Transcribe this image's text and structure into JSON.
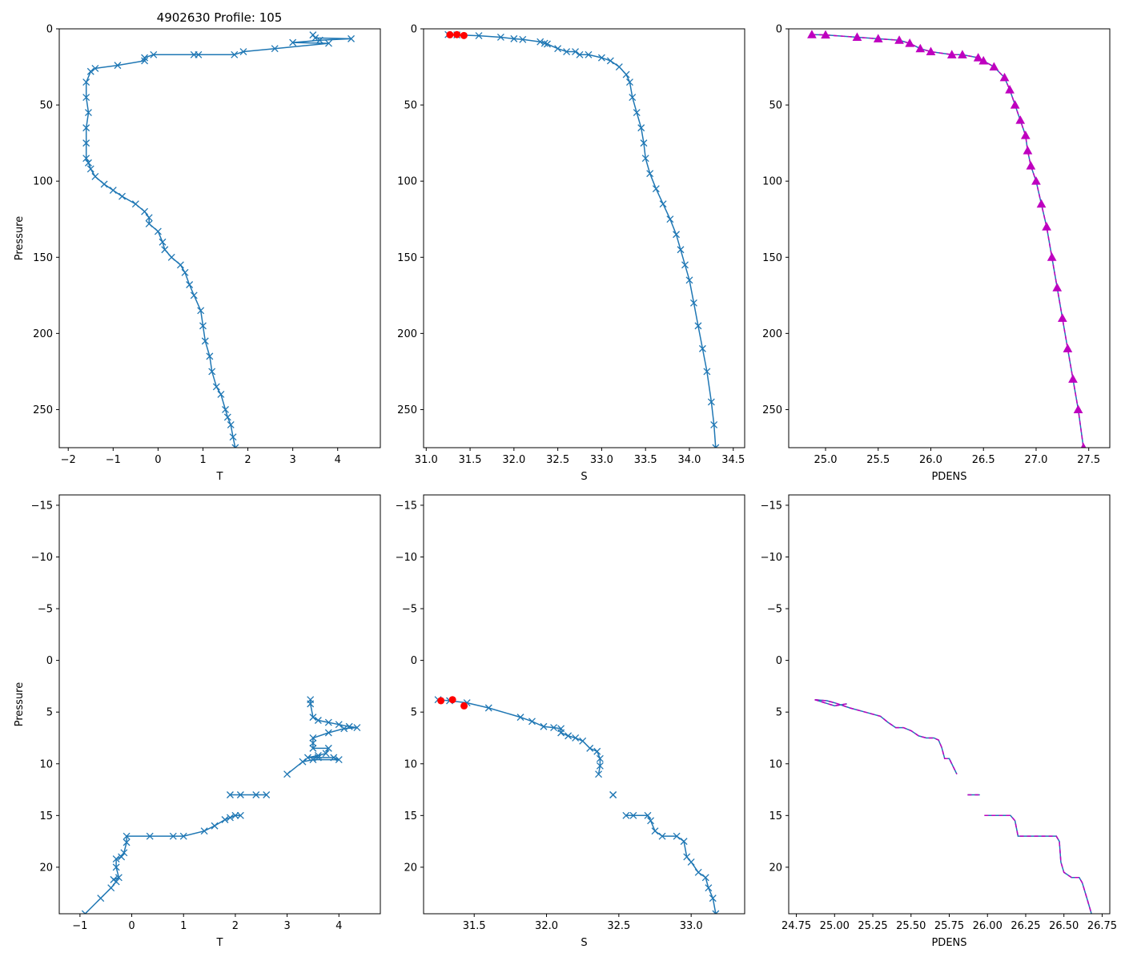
{
  "figure_title": "4902630 Profile: 105",
  "colors": {
    "line": "#1f77b4",
    "flag": "#ff0000",
    "density": "#bf00bf",
    "axis": "#000000"
  },
  "chart_data": [
    {
      "id": "t-full",
      "type": "line",
      "xlabel": "T",
      "ylabel": "Pressure",
      "xlim": [
        -2.2,
        4.95
      ],
      "ylim": [
        275,
        0
      ],
      "xticks": [
        -2,
        -1,
        0,
        1,
        2,
        3,
        4
      ],
      "yticks": [
        0,
        50,
        100,
        150,
        200,
        250
      ],
      "marker": "x",
      "x": [
        3.45,
        3.5,
        4.3,
        3.6,
        3.0,
        3.8,
        2.6,
        1.9,
        1.7,
        0.9,
        0.8,
        -0.1,
        -0.3,
        -0.3,
        -0.9,
        -1.4,
        -1.5,
        -1.6,
        -1.6,
        -1.55,
        -1.6,
        -1.6,
        -1.6,
        -1.55,
        -1.5,
        -1.4,
        -1.2,
        -1.0,
        -0.8,
        -0.5,
        -0.3,
        -0.2,
        -0.2,
        0.0,
        0.1,
        0.15,
        0.3,
        0.5,
        0.6,
        0.7,
        0.8,
        0.95,
        1.0,
        1.05,
        1.15,
        1.2,
        1.3,
        1.4,
        1.5,
        1.55,
        1.62,
        1.67,
        1.72
      ],
      "y": [
        4,
        6,
        6.5,
        7.5,
        9,
        9.5,
        13,
        15,
        17,
        17,
        17,
        17,
        19,
        21,
        24,
        26,
        28,
        35,
        45,
        55,
        65,
        75,
        85,
        88,
        92,
        97,
        102,
        106,
        110,
        115,
        120,
        124,
        128,
        133,
        140,
        145,
        150,
        155,
        160,
        168,
        175,
        185,
        195,
        205,
        215,
        225,
        235,
        240,
        250,
        255,
        260,
        268,
        275
      ]
    },
    {
      "id": "s-full",
      "type": "line",
      "xlabel": "S",
      "ylabel": "",
      "xlim": [
        30.97,
        34.63
      ],
      "ylim": [
        275,
        0
      ],
      "xticks": [
        31.0,
        31.5,
        32.0,
        32.5,
        33.0,
        33.5,
        34.0,
        34.5
      ],
      "yticks": [
        0,
        50,
        100,
        150,
        200,
        250
      ],
      "marker": "x",
      "x": [
        31.25,
        31.35,
        31.6,
        31.85,
        32.0,
        32.1,
        32.3,
        32.35,
        32.38,
        32.5,
        32.6,
        32.7,
        32.75,
        32.85,
        33.0,
        33.1,
        33.2,
        33.28,
        33.32,
        33.35,
        33.4,
        33.45,
        33.48,
        33.5,
        33.55,
        33.62,
        33.7,
        33.78,
        33.85,
        33.9,
        33.95,
        34.0,
        34.05,
        34.1,
        34.15,
        34.2,
        34.25,
        34.28,
        34.3
      ],
      "y": [
        3.8,
        4,
        4.5,
        5.5,
        6.5,
        7,
        8.5,
        9.5,
        10,
        13,
        15,
        15,
        17,
        17,
        19,
        21,
        25,
        30,
        35,
        45,
        55,
        65,
        75,
        85,
        95,
        105,
        115,
        125,
        135,
        145,
        155,
        165,
        180,
        195,
        210,
        225,
        245,
        260,
        275
      ],
      "flagged": {
        "x": [
          31.27,
          31.35,
          31.43
        ],
        "y": [
          3.9,
          3.8,
          4.4
        ]
      }
    },
    {
      "id": "d-full",
      "type": "line",
      "xlabel": "PDENS",
      "ylabel": "",
      "xlim": [
        24.65,
        27.7
      ],
      "ylim": [
        275,
        0
      ],
      "xticks": [
        25.0,
        25.5,
        26.0,
        26.5,
        27.0,
        27.5
      ],
      "yticks": [
        0,
        50,
        100,
        150,
        200,
        250
      ],
      "marker": "^",
      "x": [
        24.87,
        25.0,
        25.3,
        25.5,
        25.7,
        25.8,
        25.9,
        26.0,
        26.2,
        26.3,
        26.45,
        26.5,
        26.6,
        26.7,
        26.75,
        26.8,
        26.85,
        26.9,
        26.92,
        26.95,
        27.0,
        27.05,
        27.1,
        27.15,
        27.2,
        27.25,
        27.3,
        27.35,
        27.4,
        27.45
      ],
      "y": [
        3.8,
        4,
        5.5,
        6.5,
        7.5,
        9.5,
        13,
        15,
        17,
        17,
        19,
        21,
        25,
        32,
        40,
        50,
        60,
        70,
        80,
        90,
        100,
        115,
        130,
        150,
        170,
        190,
        210,
        230,
        250,
        275
      ]
    },
    {
      "id": "t-zoom",
      "type": "line",
      "xlabel": "T",
      "ylabel": "Pressure",
      "xlim": [
        -1.4,
        4.8
      ],
      "ylim": [
        24.5,
        -16
      ],
      "xticks": [
        -1,
        0,
        1,
        2,
        3,
        4
      ],
      "yticks": [
        -15,
        -10,
        -5,
        0,
        5,
        10,
        15,
        20
      ],
      "marker": "x",
      "x": [
        3.45,
        3.45,
        3.5,
        3.6,
        3.8,
        4.0,
        4.2,
        4.35,
        4.1,
        3.8,
        3.5,
        3.5,
        3.5,
        3.8,
        3.75,
        3.6,
        3.4,
        3.6,
        3.9,
        4.0,
        3.5,
        3.3,
        3.0,
        null,
        1.9,
        2.1,
        2.4,
        2.6,
        null,
        2.1,
        2.0,
        1.9,
        1.8,
        1.6,
        1.4,
        1.0,
        0.8,
        0.35,
        -0.1,
        -0.1,
        -0.15,
        -0.2,
        -0.3,
        -0.3,
        -0.25,
        -0.35,
        -0.3,
        -0.4,
        -0.6,
        -0.9
      ],
      "y": [
        3.8,
        4.2,
        5.5,
        5.8,
        6.0,
        6.2,
        6.4,
        6.5,
        6.6,
        7.0,
        7.5,
        8.0,
        8.5,
        8.5,
        9.0,
        9.2,
        9.4,
        9.4,
        9.4,
        9.6,
        9.6,
        9.8,
        11.0,
        null,
        13,
        13,
        13,
        13,
        null,
        15,
        15,
        15.2,
        15.4,
        16.0,
        16.5,
        17,
        17,
        17,
        17,
        17.6,
        18.6,
        19.0,
        19.2,
        20.0,
        21.0,
        21.2,
        21.4,
        22.0,
        23.0,
        24.5
      ]
    },
    {
      "id": "s-zoom",
      "type": "line",
      "xlabel": "S",
      "ylabel": "",
      "xlim": [
        31.15,
        33.37
      ],
      "ylim": [
        24.5,
        -16
      ],
      "xticks": [
        31.5,
        32.0,
        32.5,
        33.0
      ],
      "yticks": [
        -15,
        -10,
        -5,
        0,
        5,
        10,
        15,
        20
      ],
      "marker": "x",
      "x": [
        31.25,
        31.33,
        31.45,
        31.6,
        31.82,
        31.9,
        31.98,
        32.05,
        32.1,
        32.1,
        32.15,
        32.2,
        32.25,
        32.3,
        32.35,
        32.37,
        32.37,
        32.36,
        null,
        32.46,
        32.46,
        null,
        32.55,
        32.6,
        32.7,
        32.72,
        32.75,
        32.8,
        32.9,
        32.95,
        32.97,
        33.0,
        33.05,
        33.1,
        33.12,
        33.15,
        33.17
      ],
      "y": [
        3.8,
        3.9,
        4.1,
        4.6,
        5.5,
        5.9,
        6.4,
        6.5,
        6.6,
        7.0,
        7.3,
        7.5,
        7.8,
        8.5,
        8.8,
        9.5,
        10.2,
        11.0,
        null,
        13,
        13,
        null,
        15,
        15,
        15,
        15.5,
        16.5,
        17,
        17,
        17.5,
        19.0,
        19.5,
        20.5,
        21.0,
        22.0,
        23.0,
        24.5
      ],
      "flagged": {
        "x": [
          31.27,
          31.35,
          31.43
        ],
        "y": [
          3.9,
          3.8,
          4.4
        ]
      }
    },
    {
      "id": "d-zoom",
      "type": "line",
      "xlabel": "PDENS",
      "ylabel": "",
      "xlim": [
        24.7,
        26.8
      ],
      "ylim": [
        24.5,
        -16
      ],
      "xticks": [
        24.75,
        25.0,
        25.25,
        25.5,
        25.75,
        26.0,
        26.25,
        26.5,
        26.75
      ],
      "yticks": [
        -15,
        -10,
        -5,
        0,
        5,
        10,
        15,
        20
      ],
      "marker": "none",
      "x": [
        24.87,
        24.95,
        25.0,
        25.1,
        25.2,
        25.3,
        25.35,
        25.4,
        25.45,
        25.5,
        25.55,
        25.6,
        25.62,
        25.65,
        25.68,
        25.7,
        25.72,
        25.75,
        25.8,
        null,
        25.87,
        25.95,
        null,
        25.98,
        26.15,
        26.18,
        26.2,
        26.25,
        26.3,
        26.4,
        26.45,
        26.47,
        26.48,
        26.5,
        26.55,
        26.6,
        26.62,
        26.65,
        26.68
      ],
      "y": [
        3.8,
        3.9,
        4.1,
        4.6,
        5.0,
        5.4,
        6.0,
        6.5,
        6.5,
        6.8,
        7.3,
        7.5,
        7.5,
        7.5,
        7.7,
        8.4,
        9.5,
        9.5,
        11.0,
        null,
        13,
        13,
        null,
        15,
        15,
        15.5,
        17,
        17,
        17,
        17,
        17,
        17.5,
        19.5,
        20.5,
        21.0,
        21.0,
        21.5,
        23.0,
        24.5
      ],
      "extra_segment": {
        "x": [
          24.87,
          25.0,
          25.08
        ],
        "y": [
          3.8,
          4.4,
          4.2
        ]
      }
    }
  ]
}
